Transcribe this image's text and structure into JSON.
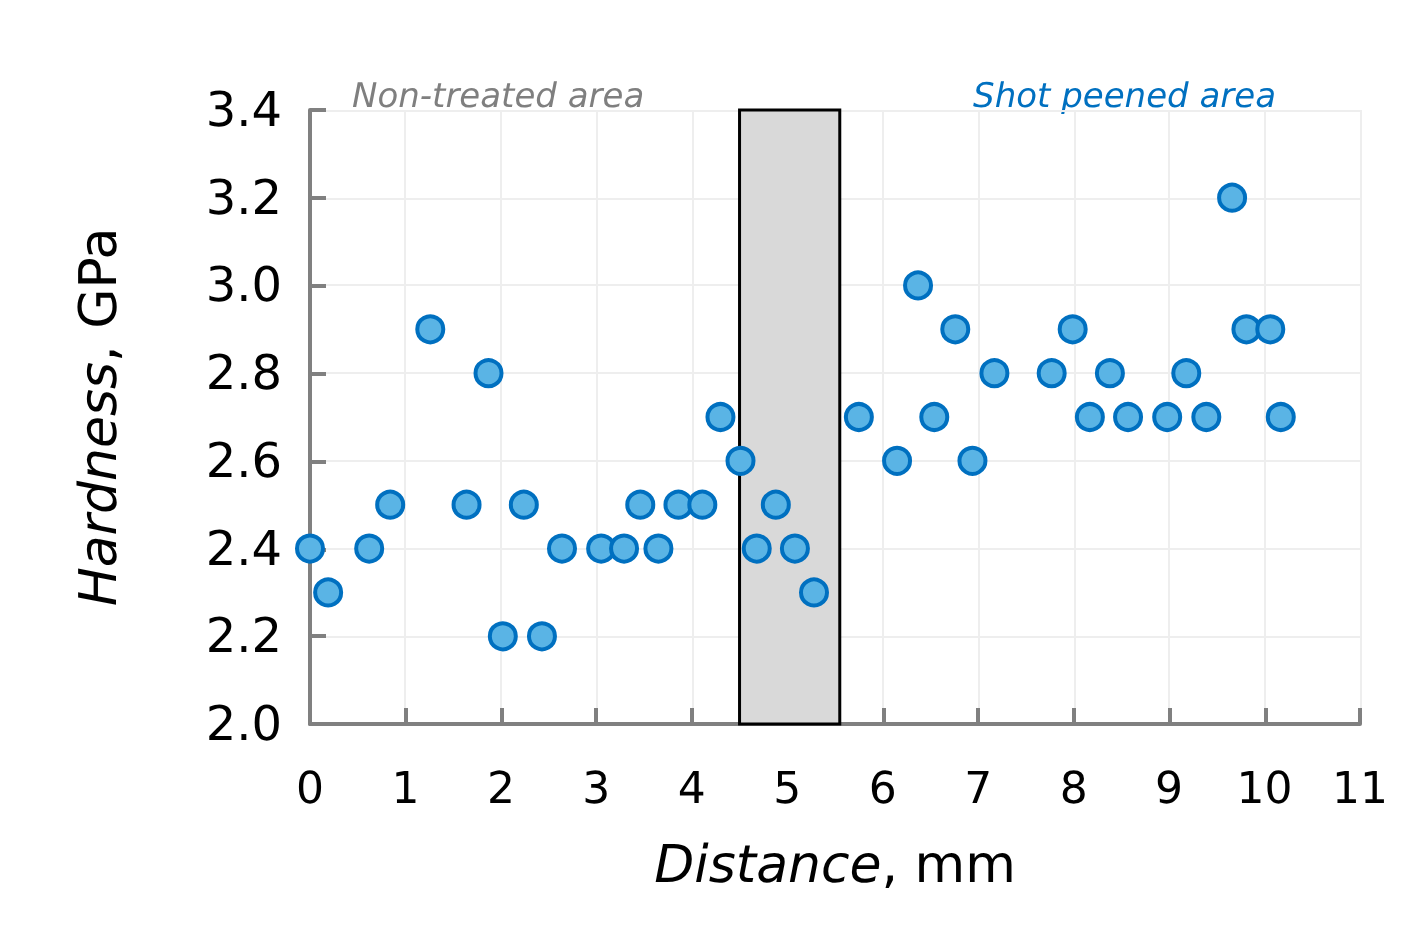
{
  "chart_data": {
    "type": "scatter",
    "xlabel": "Distance, mm",
    "ylabel": "Hardness, GPa",
    "x": [
      0,
      0.19,
      0.62,
      0.84,
      1.26,
      1.64,
      1.87,
      2.02,
      2.24,
      2.43,
      2.64,
      3.05,
      3.29,
      3.46,
      3.65,
      3.86,
      4.11,
      4.3,
      4.51,
      4.68,
      4.88,
      5.08,
      5.28,
      5.75,
      6.15,
      6.37,
      6.54,
      6.76,
      6.94,
      7.17,
      7.77,
      7.99,
      8.17,
      8.38,
      8.57,
      8.98,
      9.18,
      9.39,
      9.66,
      9.81,
      10.06,
      10.17
    ],
    "values": [
      2.4,
      2.3,
      2.4,
      2.5,
      2.9,
      2.5,
      2.8,
      2.2,
      2.5,
      2.2,
      2.4,
      2.4,
      2.4,
      2.5,
      2.4,
      2.5,
      2.5,
      2.7,
      2.6,
      2.4,
      2.5,
      2.4,
      2.3,
      2.7,
      2.6,
      3.0,
      2.7,
      2.9,
      2.6,
      2.8,
      2.8,
      2.9,
      2.7,
      2.8,
      2.7,
      2.7,
      2.8,
      2.7,
      3.2,
      2.9,
      2.9,
      2.7
    ],
    "color": "#5ab4e5",
    "marker": "circle",
    "xlim": [
      0,
      11
    ],
    "xticks": [
      0,
      1,
      2,
      3,
      4,
      5,
      6,
      7,
      8,
      9,
      10,
      11
    ],
    "ylim": [
      2.0,
      3.4
    ],
    "yticks": [
      {
        "value": 2.0,
        "label": "2.0"
      },
      {
        "value": 2.2,
        "label": "2.2"
      },
      {
        "value": 2.4,
        "label": "2.4"
      },
      {
        "value": 2.6,
        "label": "2.6"
      },
      {
        "value": 2.8,
        "label": "2.8"
      },
      {
        "value": 3.0,
        "label": "3.0"
      },
      {
        "value": 3.2,
        "label": "3.2"
      },
      {
        "value": 3.4,
        "label": "3.4"
      }
    ],
    "grid": true,
    "bands": [
      {
        "axis": "x",
        "from": 4.5,
        "to": 5.55,
        "color": "#d9d9d9"
      }
    ],
    "annotations": [
      "Non-treated area",
      "Shot peened area"
    ]
  }
}
